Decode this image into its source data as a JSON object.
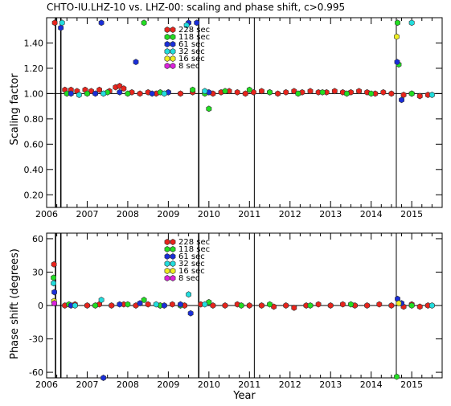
{
  "chart_data": [
    {
      "type": "scatter",
      "title": "CHTO-IU.LHZ-10 vs. LHZ-00: scaling and phase shift, c>0.995",
      "xlabel": "",
      "ylabel": "Scaling factor",
      "xlim": [
        2006.0,
        2015.75
      ],
      "ylim": [
        0.1,
        1.6
      ],
      "x_ticks": [
        2006,
        2007,
        2008,
        2009,
        2010,
        2011,
        2012,
        2013,
        2014,
        2015
      ],
      "y_ticks": [
        0.2,
        0.4,
        0.6,
        0.8,
        1.0,
        1.2,
        1.4
      ],
      "y_tick_labels": [
        "0.20",
        "0.40",
        "0.60",
        "0.80",
        "1.00",
        "1.20",
        "1.40"
      ],
      "reference_line_y": 1.0,
      "vertical_lines": [
        2006.22,
        2006.35,
        2009.75,
        2011.12,
        2014.62
      ],
      "legend_position": "top-center",
      "series": [
        {
          "name": "228 sec",
          "color": "#e8241c",
          "points": [
            [
              2006.2,
              1.56
            ],
            [
              2006.45,
              1.03
            ],
            [
              2006.6,
              1.03
            ],
            [
              2006.75,
              1.02
            ],
            [
              2006.95,
              1.03
            ],
            [
              2007.1,
              1.02
            ],
            [
              2007.3,
              1.03
            ],
            [
              2007.55,
              1.02
            ],
            [
              2007.7,
              1.05
            ],
            [
              2007.8,
              1.06
            ],
            [
              2007.9,
              1.04
            ],
            [
              2008.1,
              1.01
            ],
            [
              2008.3,
              1.0
            ],
            [
              2008.5,
              1.01
            ],
            [
              2008.7,
              1.0
            ],
            [
              2009.0,
              1.01
            ],
            [
              2009.3,
              1.0
            ],
            [
              2009.6,
              1.01
            ],
            [
              2009.9,
              1.01
            ],
            [
              2010.1,
              1.0
            ],
            [
              2010.3,
              1.01
            ],
            [
              2010.5,
              1.02
            ],
            [
              2010.7,
              1.01
            ],
            [
              2010.9,
              1.0
            ],
            [
              2011.1,
              1.01
            ],
            [
              2011.3,
              1.02
            ],
            [
              2011.5,
              1.01
            ],
            [
              2011.7,
              1.0
            ],
            [
              2011.9,
              1.01
            ],
            [
              2012.1,
              1.02
            ],
            [
              2012.3,
              1.01
            ],
            [
              2012.5,
              1.02
            ],
            [
              2012.7,
              1.01
            ],
            [
              2012.9,
              1.01
            ],
            [
              2013.1,
              1.02
            ],
            [
              2013.3,
              1.01
            ],
            [
              2013.5,
              1.01
            ],
            [
              2013.7,
              1.02
            ],
            [
              2013.9,
              1.01
            ],
            [
              2014.1,
              1.0
            ],
            [
              2014.3,
              1.01
            ],
            [
              2014.5,
              1.0
            ],
            [
              2014.8,
              0.99
            ],
            [
              2015.0,
              1.0
            ],
            [
              2015.2,
              0.98
            ],
            [
              2015.4,
              0.99
            ]
          ]
        },
        {
          "name": "118 sec",
          "color": "#22dd22",
          "points": [
            [
              2006.5,
              1.0
            ],
            [
              2007.0,
              1.0
            ],
            [
              2007.5,
              1.01
            ],
            [
              2008.0,
              1.0
            ],
            [
              2008.4,
              1.56
            ],
            [
              2008.8,
              1.01
            ],
            [
              2009.6,
              1.03
            ],
            [
              2009.9,
              1.0
            ],
            [
              2010.0,
              0.88
            ],
            [
              2010.4,
              1.02
            ],
            [
              2011.0,
              1.03
            ],
            [
              2011.5,
              1.01
            ],
            [
              2012.2,
              1.0
            ],
            [
              2012.8,
              1.01
            ],
            [
              2013.4,
              1.0
            ],
            [
              2014.0,
              1.0
            ],
            [
              2014.65,
              1.56
            ],
            [
              2014.68,
              1.23
            ],
            [
              2015.0,
              1.0
            ]
          ]
        },
        {
          "name": "61 sec",
          "color": "#1a2ed8",
          "points": [
            [
              2006.35,
              1.52
            ],
            [
              2006.6,
              1.0
            ],
            [
              2007.2,
              1.0
            ],
            [
              2007.35,
              1.56
            ],
            [
              2007.8,
              1.01
            ],
            [
              2008.2,
              1.25
            ],
            [
              2008.6,
              1.0
            ],
            [
              2009.0,
              1.01
            ],
            [
              2009.5,
              1.56
            ],
            [
              2009.7,
              1.56
            ],
            [
              2010.0,
              1.01
            ],
            [
              2014.64,
              1.25
            ],
            [
              2014.75,
              0.95
            ]
          ]
        },
        {
          "name": "32 sec",
          "color": "#22dddd",
          "points": [
            [
              2006.38,
              1.56
            ],
            [
              2006.8,
              0.99
            ],
            [
              2007.4,
              1.0
            ],
            [
              2008.9,
              1.0
            ],
            [
              2009.45,
              1.54
            ],
            [
              2009.9,
              1.02
            ],
            [
              2015.0,
              1.56
            ],
            [
              2015.5,
              0.99
            ]
          ]
        },
        {
          "name": "16 sec",
          "color": "#eeee22",
          "points": [
            [
              2014.63,
              1.45
            ]
          ]
        },
        {
          "name": "8 sec",
          "color": "#dd22dd",
          "points": []
        }
      ]
    },
    {
      "type": "scatter",
      "title": "",
      "xlabel": "Year",
      "ylabel": "Phase shift (degrees)",
      "xlim": [
        2006.0,
        2015.75
      ],
      "ylim": [
        -65,
        65
      ],
      "x_ticks": [
        2006,
        2007,
        2008,
        2009,
        2010,
        2011,
        2012,
        2013,
        2014,
        2015
      ],
      "y_ticks": [
        -60,
        -30,
        0,
        30,
        60
      ],
      "y_tick_labels": [
        "-60",
        "-30",
        "0",
        "30",
        "60"
      ],
      "reference_line_y": 0,
      "vertical_lines": [
        2006.22,
        2006.35,
        2009.75,
        2011.12,
        2014.62
      ],
      "legend_position": "top-center",
      "series": [
        {
          "name": "228 sec",
          "color": "#e8241c",
          "points": [
            [
              2006.18,
              37
            ],
            [
              2006.45,
              0
            ],
            [
              2006.7,
              1
            ],
            [
              2007.0,
              0
            ],
            [
              2007.3,
              1
            ],
            [
              2007.6,
              0
            ],
            [
              2007.9,
              1
            ],
            [
              2008.2,
              0
            ],
            [
              2008.5,
              1
            ],
            [
              2008.8,
              0
            ],
            [
              2009.1,
              1
            ],
            [
              2009.4,
              0
            ],
            [
              2009.8,
              1
            ],
            [
              2010.1,
              0
            ],
            [
              2010.4,
              0
            ],
            [
              2010.7,
              1
            ],
            [
              2011.0,
              0
            ],
            [
              2011.3,
              0
            ],
            [
              2011.6,
              -1
            ],
            [
              2011.9,
              0
            ],
            [
              2012.1,
              -2
            ],
            [
              2012.4,
              0
            ],
            [
              2012.7,
              1
            ],
            [
              2013.0,
              0
            ],
            [
              2013.3,
              1
            ],
            [
              2013.6,
              0
            ],
            [
              2013.9,
              0
            ],
            [
              2014.2,
              1
            ],
            [
              2014.5,
              0
            ],
            [
              2014.8,
              -1
            ],
            [
              2015.0,
              1
            ],
            [
              2015.2,
              -1
            ],
            [
              2015.4,
              0
            ]
          ]
        },
        {
          "name": "118 sec",
          "color": "#22dd22",
          "points": [
            [
              2006.17,
              25
            ],
            [
              2006.55,
              1
            ],
            [
              2007.2,
              0
            ],
            [
              2008.0,
              1
            ],
            [
              2008.4,
              5
            ],
            [
              2008.8,
              0
            ],
            [
              2009.3,
              0
            ],
            [
              2010.0,
              3
            ],
            [
              2010.8,
              0
            ],
            [
              2011.5,
              1
            ],
            [
              2012.5,
              0
            ],
            [
              2013.5,
              1
            ],
            [
              2014.63,
              -64
            ],
            [
              2015.0,
              0
            ]
          ]
        },
        {
          "name": "61 sec",
          "color": "#1a2ed8",
          "points": [
            [
              2006.19,
              12
            ],
            [
              2006.6,
              0
            ],
            [
              2007.4,
              -65
            ],
            [
              2007.8,
              1
            ],
            [
              2008.3,
              2
            ],
            [
              2008.9,
              0
            ],
            [
              2009.3,
              1
            ],
            [
              2009.55,
              -7
            ],
            [
              2014.65,
              6
            ],
            [
              2014.75,
              2
            ]
          ]
        },
        {
          "name": "32 sec",
          "color": "#22dddd",
          "points": [
            [
              2006.17,
              20
            ],
            [
              2006.7,
              0
            ],
            [
              2007.35,
              5
            ],
            [
              2008.7,
              1
            ],
            [
              2009.5,
              10
            ],
            [
              2009.9,
              1
            ],
            [
              2015.5,
              0
            ]
          ]
        },
        {
          "name": "16 sec",
          "color": "#eeee22",
          "points": [
            [
              2006.18,
              4
            ],
            [
              2014.68,
              2
            ]
          ]
        },
        {
          "name": "8 sec",
          "color": "#dd22dd",
          "points": [
            [
              2006.19,
              2
            ]
          ]
        }
      ]
    }
  ]
}
